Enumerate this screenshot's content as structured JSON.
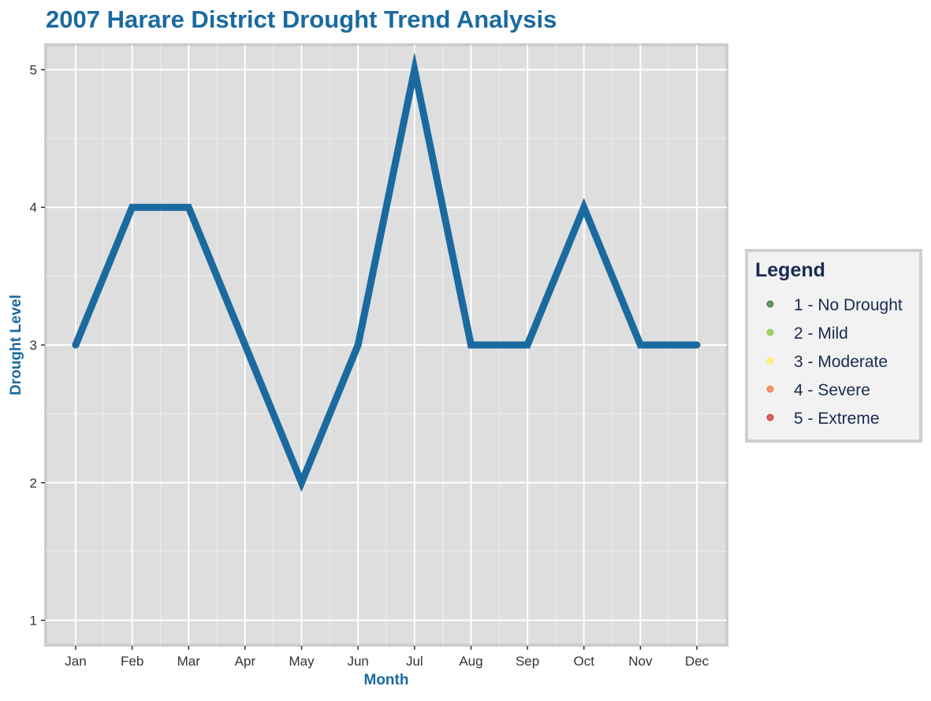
{
  "chart_data": {
    "type": "line",
    "title": "2007 Harare District Drought Trend Analysis",
    "xlabel": "Month",
    "ylabel": "Drought Level",
    "categories": [
      "Jan",
      "Feb",
      "Mar",
      "Apr",
      "May",
      "Jun",
      "Jul",
      "Aug",
      "Sep",
      "Oct",
      "Nov",
      "Dec"
    ],
    "series": [
      {
        "values": [
          3,
          4,
          4,
          3,
          2,
          3,
          5,
          3,
          3,
          4,
          3,
          3
        ],
        "color": "#1a6aa0"
      }
    ],
    "ylim": [
      0.82,
      5.18
    ],
    "yticks": [
      1,
      2,
      3,
      4,
      5
    ],
    "grid": true,
    "legend": {
      "title": "Legend",
      "placement": "right",
      "items": [
        {
          "label": "1 - No Drought",
          "color": "#2e7d32"
        },
        {
          "label": "2 - Mild",
          "color": "#8bc34a"
        },
        {
          "label": "3 - Moderate",
          "color": "#ffee58"
        },
        {
          "label": "4 - Severe",
          "color": "#ff7043"
        },
        {
          "label": "5 - Extreme",
          "color": "#d32f2f"
        }
      ]
    }
  }
}
